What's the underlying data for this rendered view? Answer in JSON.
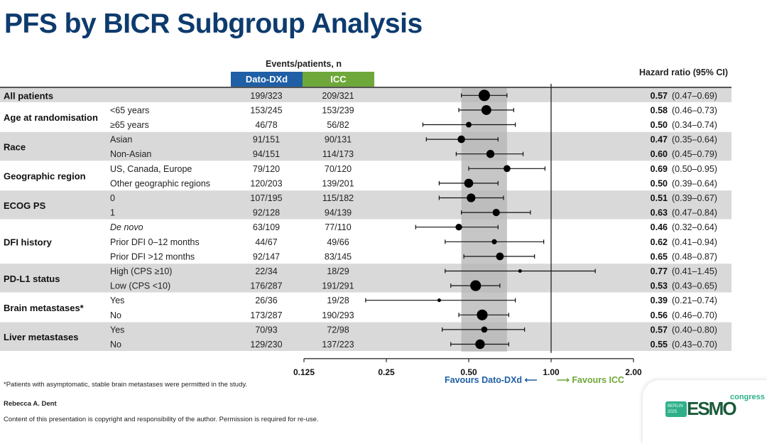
{
  "title": "PFS by BICR Subgroup Analysis",
  "header": {
    "events_label": "Events/patients, n",
    "arm1": "Dato-DXd",
    "arm2": "ICC",
    "hr_label": "Hazard ratio (95% CI)"
  },
  "colors": {
    "title": "#0d3b6e",
    "arm1": "#1f5fa5",
    "arm2": "#6fa83a",
    "row_shade": "#d9d9d9",
    "ci_band": "#b3b3b3"
  },
  "chart_data": {
    "type": "forest",
    "x_scale": "log2",
    "xlim": [
      0.125,
      2.0
    ],
    "x_ticks": [
      "0.125",
      "0.25",
      "0.50",
      "1.00",
      "2.00"
    ],
    "tick_values": [
      0.125,
      0.25,
      0.5,
      1.0,
      2.0
    ],
    "reference_line": 1.0,
    "overall_ci_band": [
      0.47,
      0.69
    ],
    "groups": [
      {
        "label": "All patients",
        "rows": [
          {
            "sub": "",
            "arm1": "199/323",
            "arm2": "209/321",
            "hr": 0.57,
            "lo": 0.47,
            "hi": 0.69,
            "hr_text": "0.57",
            "ci_text": "(0.47–0.69)"
          }
        ]
      },
      {
        "label": "Age at randomisation",
        "rows": [
          {
            "sub": "<65 years",
            "arm1": "153/245",
            "arm2": "153/239",
            "hr": 0.58,
            "lo": 0.46,
            "hi": 0.73,
            "hr_text": "0.58",
            "ci_text": "(0.46–0.73)"
          },
          {
            "sub": "≥65 years",
            "arm1": "46/78",
            "arm2": "56/82",
            "hr": 0.5,
            "lo": 0.34,
            "hi": 0.74,
            "hr_text": "0.50",
            "ci_text": "(0.34–0.74)"
          }
        ]
      },
      {
        "label": "Race",
        "rows": [
          {
            "sub": "Asian",
            "arm1": "91/151",
            "arm2": "90/131",
            "hr": 0.47,
            "lo": 0.35,
            "hi": 0.64,
            "hr_text": "0.47",
            "ci_text": "(0.35–0.64)"
          },
          {
            "sub": "Non-Asian",
            "arm1": "94/151",
            "arm2": "114/173",
            "hr": 0.6,
            "lo": 0.45,
            "hi": 0.79,
            "hr_text": "0.60",
            "ci_text": "(0.45–0.79)"
          }
        ]
      },
      {
        "label": "Geographic region",
        "rows": [
          {
            "sub": "US, Canada, Europe",
            "arm1": "79/120",
            "arm2": "70/120",
            "hr": 0.69,
            "lo": 0.5,
            "hi": 0.95,
            "hr_text": "0.69",
            "ci_text": "(0.50–0.95)"
          },
          {
            "sub": "Other geographic regions",
            "arm1": "120/203",
            "arm2": "139/201",
            "hr": 0.5,
            "lo": 0.39,
            "hi": 0.64,
            "hr_text": "0.50",
            "ci_text": "(0.39–0.64)"
          }
        ]
      },
      {
        "label": "ECOG PS",
        "rows": [
          {
            "sub": "0",
            "arm1": "107/195",
            "arm2": "115/182",
            "hr": 0.51,
            "lo": 0.39,
            "hi": 0.67,
            "hr_text": "0.51",
            "ci_text": "(0.39–0.67)"
          },
          {
            "sub": "1",
            "arm1": "92/128",
            "arm2": "94/139",
            "hr": 0.63,
            "lo": 0.47,
            "hi": 0.84,
            "hr_text": "0.63",
            "ci_text": "(0.47–0.84)"
          }
        ]
      },
      {
        "label": "DFI history",
        "rows": [
          {
            "sub": "De novo",
            "italic": true,
            "arm1": "63/109",
            "arm2": "77/110",
            "hr": 0.46,
            "lo": 0.32,
            "hi": 0.64,
            "hr_text": "0.46",
            "ci_text": "(0.32–0.64)"
          },
          {
            "sub": "Prior DFI 0–12 months",
            "arm1": "44/67",
            "arm2": "49/66",
            "hr": 0.62,
            "lo": 0.41,
            "hi": 0.94,
            "hr_text": "0.62",
            "ci_text": "(0.41–0.94)"
          },
          {
            "sub": "Prior DFI >12 months",
            "arm1": "92/147",
            "arm2": "83/145",
            "hr": 0.65,
            "lo": 0.48,
            "hi": 0.87,
            "hr_text": "0.65",
            "ci_text": "(0.48–0.87)"
          }
        ]
      },
      {
        "label": "PD-L1 status",
        "rows": [
          {
            "sub": "High (CPS ≥10)",
            "arm1": "22/34",
            "arm2": "18/29",
            "hr": 0.77,
            "lo": 0.41,
            "hi": 1.45,
            "hr_text": "0.77",
            "ci_text": "(0.41–1.45)"
          },
          {
            "sub": "Low (CPS <10)",
            "arm1": "176/287",
            "arm2": "191/291",
            "hr": 0.53,
            "lo": 0.43,
            "hi": 0.65,
            "hr_text": "0.53",
            "ci_text": "(0.43–0.65)"
          }
        ]
      },
      {
        "label": "Brain metastases*",
        "rows": [
          {
            "sub": "Yes",
            "arm1": "26/36",
            "arm2": "19/28",
            "hr": 0.39,
            "lo": 0.21,
            "hi": 0.74,
            "hr_text": "0.39",
            "ci_text": "(0.21–0.74)"
          },
          {
            "sub": "No",
            "arm1": "173/287",
            "arm2": "190/293",
            "hr": 0.56,
            "lo": 0.46,
            "hi": 0.7,
            "hr_text": "0.56",
            "ci_text": "(0.46–0.70)"
          }
        ]
      },
      {
        "label": "Liver metastases",
        "rows": [
          {
            "sub": "Yes",
            "arm1": "70/93",
            "arm2": "72/98",
            "hr": 0.57,
            "lo": 0.4,
            "hi": 0.8,
            "hr_text": "0.57",
            "ci_text": "(0.40–0.80)"
          },
          {
            "sub": "No",
            "arm1": "129/230",
            "arm2": "137/223",
            "hr": 0.55,
            "lo": 0.43,
            "hi": 0.7,
            "hr_text": "0.55",
            "ci_text": "(0.43–0.70)"
          }
        ]
      }
    ]
  },
  "favours": {
    "left": "Favours Dato-DXd",
    "right": "Favours ICC"
  },
  "footnote": "*Patients with asymptomatic, stable brain metastases were permitted in the study.",
  "author": "Rebecca A. Dent",
  "copyright": "Content of this presentation is copyright and responsibility of the author. Permission is required for re-use.",
  "logo": {
    "city": "BERLIN",
    "year": "2025",
    "brand": "ESMO",
    "suffix": "congress"
  }
}
